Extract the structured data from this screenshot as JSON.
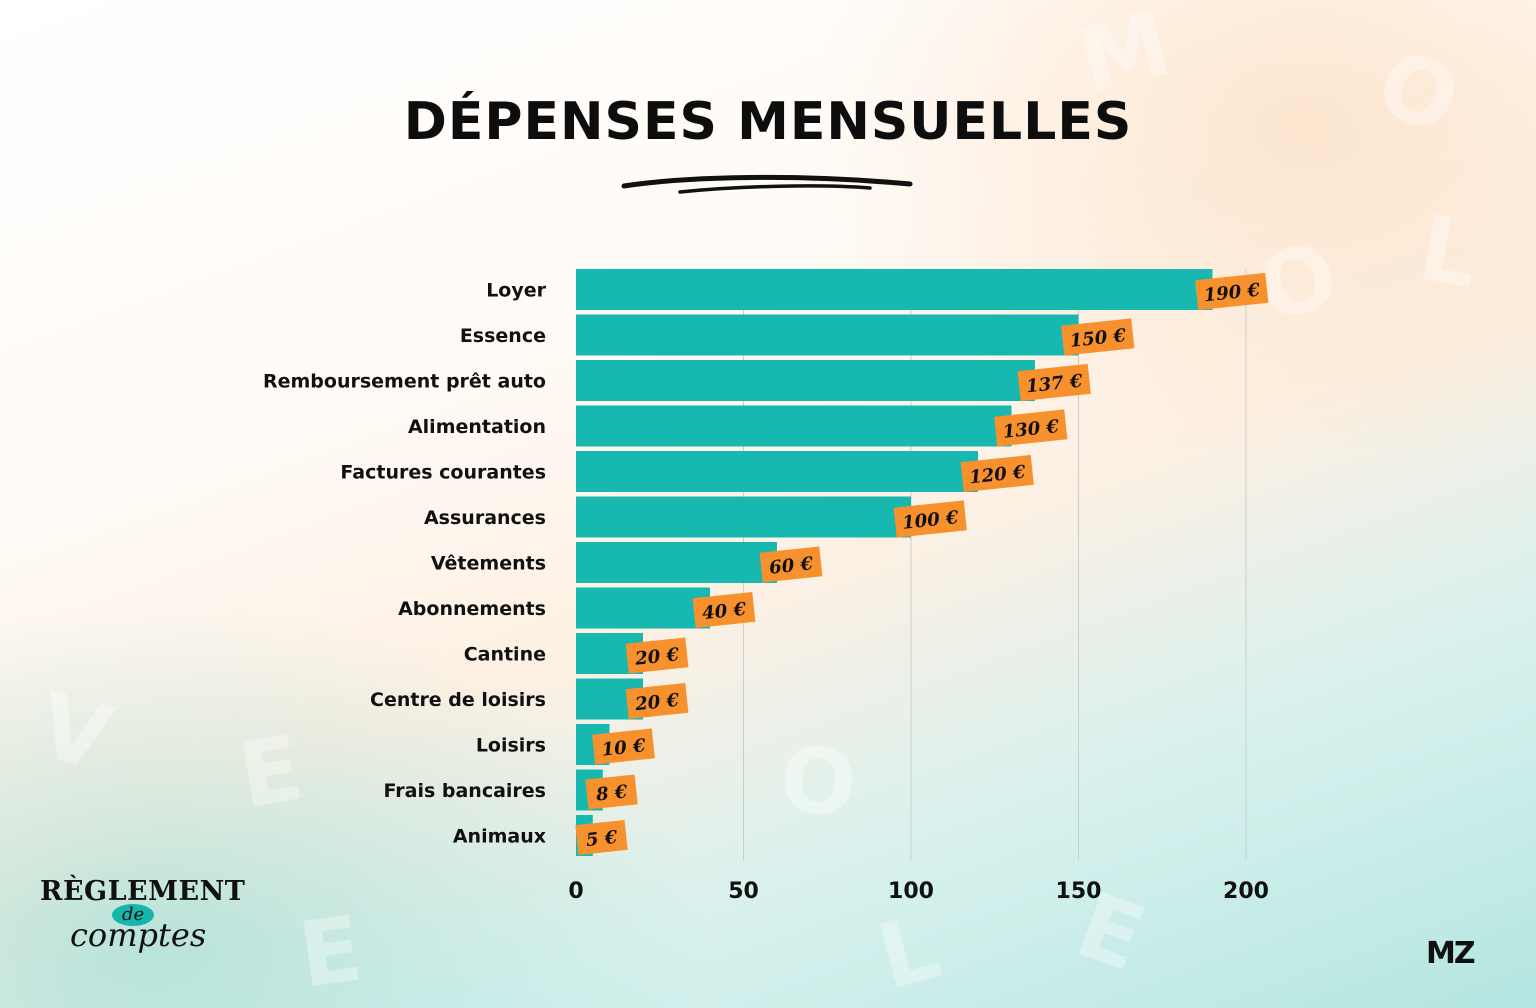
{
  "title": "DÉPENSES MENSUELLES",
  "colors": {
    "bar": "#16b8b0",
    "label_bg": "#f7912e",
    "grid": "#c9cfcf",
    "text": "#111111"
  },
  "logos": {
    "left_top": "RÈGLEMENT",
    "left_mid": "de",
    "left_bottom": "comptes",
    "right": "MZ"
  },
  "chart_data": {
    "type": "bar",
    "orientation": "horizontal",
    "categories": [
      "Loyer",
      "Essence",
      "Remboursement prêt auto",
      "Alimentation",
      "Factures courantes",
      "Assurances",
      "Vêtements",
      "Abonnements",
      "Cantine",
      "Centre de loisirs",
      "Loisirs",
      "Frais bancaires",
      "Animaux"
    ],
    "values": [
      190,
      150,
      137,
      130,
      120,
      100,
      60,
      40,
      20,
      20,
      10,
      8,
      5
    ],
    "data_labels": [
      "190 €",
      "150 €",
      "137 €",
      "130 €",
      "120 €",
      "100 €",
      "60 €",
      "40 €",
      "20 €",
      "20 €",
      "10 €",
      "8 €",
      "5 €"
    ],
    "xticks": [
      0,
      50,
      100,
      150,
      200
    ],
    "xlim": [
      0,
      200
    ],
    "grid": "vertical",
    "title": "DÉPENSES MENSUELLES",
    "xlabel": "",
    "ylabel": ""
  }
}
